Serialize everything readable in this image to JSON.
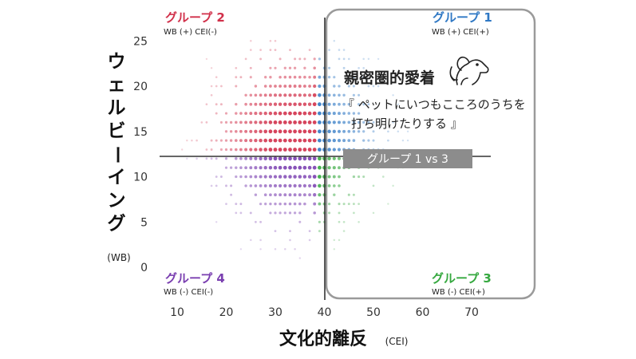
{
  "chart_data": {
    "type": "scatter",
    "x_axis": {
      "label": "文化的離反",
      "unit": "(CEI)",
      "ticks": [
        10,
        20,
        30,
        40,
        50,
        60,
        70
      ],
      "range": [
        5,
        73
      ]
    },
    "y_axis": {
      "label": "ウェルビーイング",
      "unit": "(WB)",
      "ticks": [
        0,
        5,
        10,
        15,
        20,
        25
      ],
      "range": [
        -1.5,
        26
      ]
    },
    "thresholds": {
      "x": 39,
      "y": 12.2
    },
    "groups": [
      {
        "key": "g1",
        "title": "グループ 1",
        "sub": "WB (+) CEI(+)",
        "color": "#2f78c4",
        "quadrant": "top-right"
      },
      {
        "key": "g2",
        "title": "グループ 2",
        "sub": "WB (+) CEI(-)",
        "color": "#d1304a",
        "quadrant": "top-left"
      },
      {
        "key": "g3",
        "title": "グループ 3",
        "sub": "WB (-) CEI(+)",
        "color": "#35a83f",
        "quadrant": "bottom-right"
      },
      {
        "key": "g4",
        "title": "グループ 4",
        "sub": "WB (-) CEI(-)",
        "color": "#7a3fb0",
        "quadrant": "bottom-left"
      }
    ],
    "highlight": {
      "groups": [
        "g1",
        "g3"
      ],
      "title": "親密圏的愛着",
      "quote_lines": [
        "『 ペットにいつもこころのうちを",
        "打ち明けたりする 』"
      ],
      "badge": "グループ 1 vs 3",
      "icon": "pet-dog-icon"
    },
    "grid": false,
    "legend": "none",
    "colors": {
      "frame": "#9a9a9a",
      "badge_bg": "#8c8c8c",
      "axis_line": "#333333"
    }
  }
}
